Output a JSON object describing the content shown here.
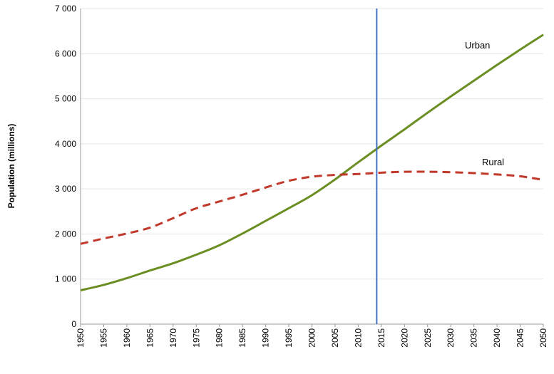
{
  "chart_data": {
    "type": "line",
    "title": "",
    "xlabel": "",
    "ylabel": "Population (millions)",
    "xlim": [
      1950,
      2050
    ],
    "ylim": [
      0,
      7000
    ],
    "grid": true,
    "y_ticks": [
      0,
      1000,
      2000,
      3000,
      4000,
      5000,
      6000,
      7000
    ],
    "y_tick_labels": [
      "0",
      "1 000",
      "2 000",
      "3 000",
      "4 000",
      "5 000",
      "6 000",
      "7 000"
    ],
    "x_ticks": [
      1950,
      1955,
      1960,
      1965,
      1970,
      1975,
      1980,
      1985,
      1990,
      1995,
      2000,
      2005,
      2010,
      2015,
      2020,
      2025,
      2030,
      2035,
      2040,
      2045,
      2050
    ],
    "x_tick_labels": [
      "1950",
      "1955",
      "1960",
      "1965",
      "1970",
      "1975",
      "1980",
      "1985",
      "1990",
      "1995",
      "2000",
      "2005",
      "2010",
      "2015",
      "2020",
      "2025",
      "2030",
      "2035",
      "2040",
      "2045",
      "2050"
    ],
    "x": [
      1950,
      1955,
      1960,
      1965,
      1970,
      1975,
      1980,
      1985,
      1990,
      1995,
      2000,
      2005,
      2010,
      2015,
      2020,
      2025,
      2030,
      2035,
      2040,
      2045,
      2050
    ],
    "series": [
      {
        "name": "Urban",
        "style": "solid",
        "color": "#6b8e23",
        "values": [
          750,
          870,
          1020,
          1190,
          1350,
          1540,
          1750,
          2010,
          2290,
          2570,
          2860,
          3210,
          3590,
          3960,
          4320,
          4690,
          5050,
          5400,
          5750,
          6090,
          6420
        ]
      },
      {
        "name": "Rural",
        "style": "dashed",
        "color": "#c0392b",
        "values": [
          1780,
          1900,
          2010,
          2140,
          2350,
          2570,
          2720,
          2870,
          3030,
          3180,
          3270,
          3310,
          3330,
          3360,
          3380,
          3380,
          3370,
          3350,
          3320,
          3280,
          3200
        ]
      }
    ],
    "reference_line": {
      "x": 2014,
      "color": "#4472c4"
    }
  }
}
